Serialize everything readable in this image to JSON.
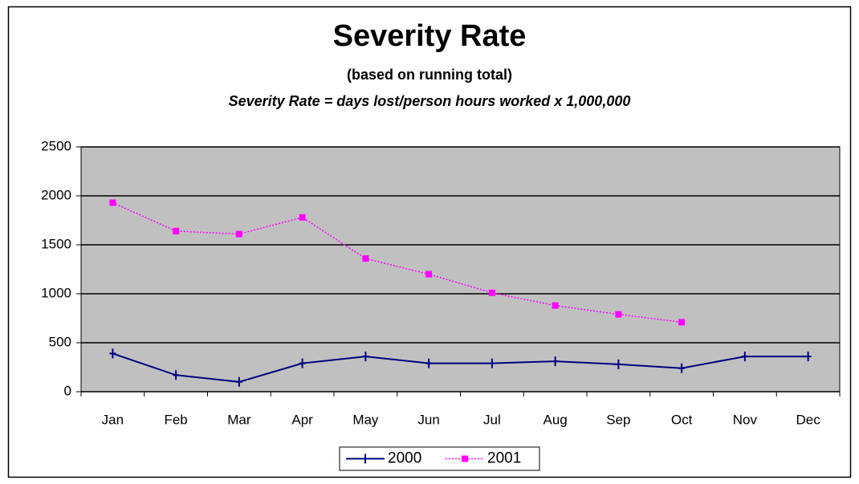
{
  "chart_data": {
    "type": "line",
    "title": "Severity Rate",
    "subtitle": "(based on running total)",
    "annotation": "Severity Rate = days lost/person hours worked x 1,000,000",
    "categories": [
      "Jan",
      "Feb",
      "Mar",
      "Apr",
      "May",
      "Jun",
      "Jul",
      "Aug",
      "Sep",
      "Oct",
      "Nov",
      "Dec"
    ],
    "series": [
      {
        "name": "2000",
        "color": "#000080",
        "values": [
          390,
          170,
          100,
          290,
          360,
          290,
          290,
          310,
          280,
          240,
          360,
          360
        ]
      },
      {
        "name": "2001",
        "color": "#ff00ff",
        "values": [
          1930,
          1640,
          1610,
          1780,
          1360,
          1200,
          1010,
          880,
          790,
          710,
          null,
          null
        ]
      }
    ],
    "ylim": [
      0,
      2500
    ],
    "yticks": [
      0,
      500,
      1000,
      1500,
      2000,
      2500
    ],
    "grid": true,
    "legend": "bottom",
    "plot_background": "#c0c0c0"
  }
}
